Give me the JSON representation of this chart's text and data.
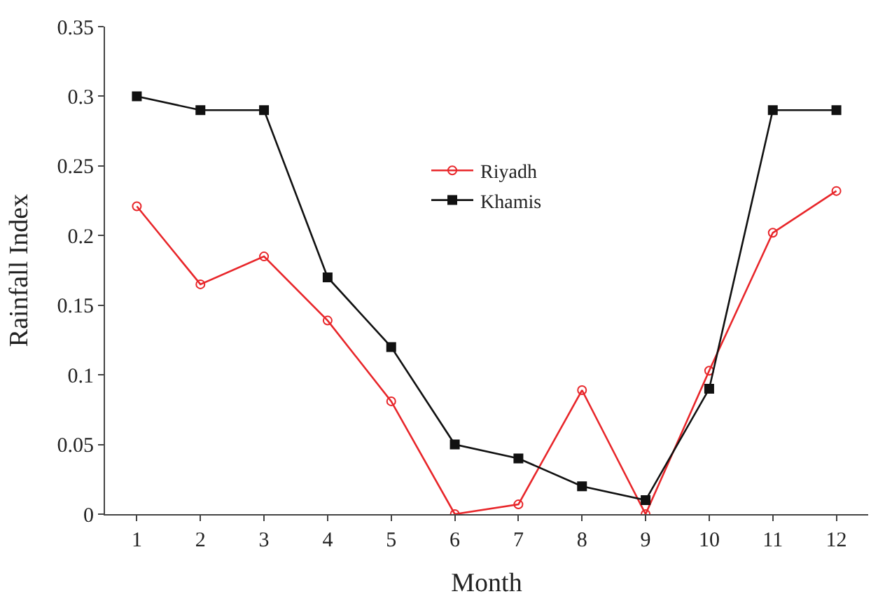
{
  "chart_data": {
    "type": "line",
    "xlabel": "Month",
    "ylabel": "Rainfall Index",
    "x": [
      1,
      2,
      3,
      4,
      5,
      6,
      7,
      8,
      9,
      10,
      11,
      12
    ],
    "series": [
      {
        "name": "Riyadh",
        "color": "#e8262a",
        "marker": "circle-open",
        "values": [
          0.221,
          0.165,
          0.185,
          0.139,
          0.081,
          0.0,
          0.007,
          0.089,
          0.0,
          0.103,
          0.202,
          0.232
        ]
      },
      {
        "name": "Khamis",
        "color": "#111111",
        "marker": "square",
        "values": [
          0.3,
          0.29,
          0.29,
          0.17,
          0.12,
          0.05,
          0.04,
          0.02,
          0.01,
          0.09,
          0.29,
          0.29
        ]
      }
    ],
    "xlim": [
      0.5,
      12.5
    ],
    "xticks": [
      1,
      2,
      3,
      4,
      5,
      6,
      7,
      8,
      9,
      10,
      11,
      12
    ],
    "ylim": [
      0,
      0.35
    ],
    "yticks": [
      0,
      0.05,
      0.1,
      0.15,
      0.2,
      0.25,
      0.3,
      0.35
    ],
    "legend": "top",
    "line_style": "solid"
  }
}
